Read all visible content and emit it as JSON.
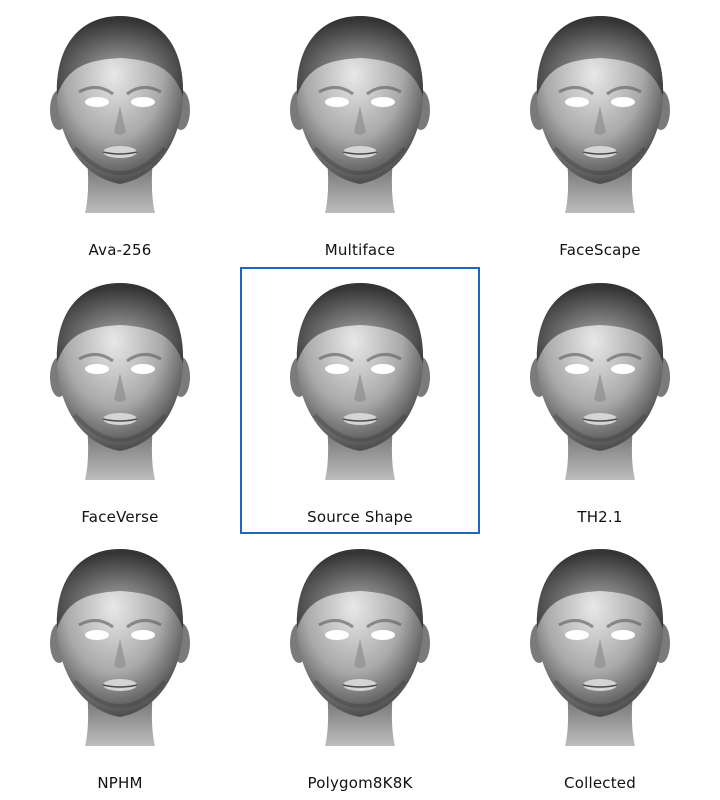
{
  "cells": [
    {
      "label": "Ava-256"
    },
    {
      "label": "Multiface"
    },
    {
      "label": "FaceScape"
    },
    {
      "label": "FaceVerse"
    },
    {
      "label": "Source Shape",
      "highlighted": true
    },
    {
      "label": "TH2.1"
    },
    {
      "label": "NPHM"
    },
    {
      "label": "Polygom8K8K"
    },
    {
      "label": "Collected"
    }
  ],
  "colors": {
    "highlight_border": "#1f66c2",
    "background": "#ffffff"
  }
}
